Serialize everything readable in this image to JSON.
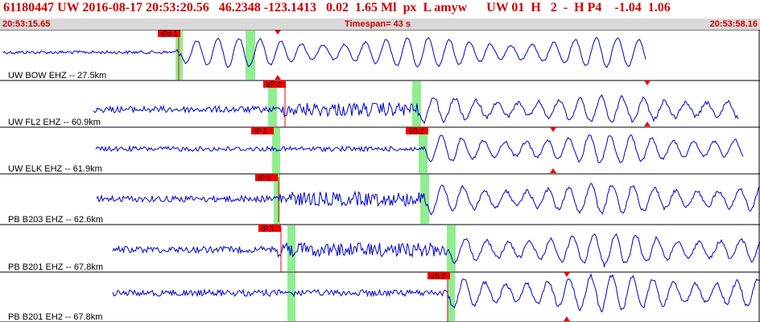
{
  "header": {
    "title": "61180447 UW 2016-08-17 20:53:20.56   46.2348 -123.1413   0.02  1.65 Ml  px  L amyw      UW 01  H   2  -  H P4    -1.04  1.06",
    "start_time": "20:53:15.65",
    "timespan": "Timespan=  43 s",
    "end_time": "20:53:58.16"
  },
  "colors": {
    "title": "#cc0000",
    "trace": "#0000cc",
    "pick_box": "#ee0000",
    "window": "#90ee90",
    "separator": "#000000"
  },
  "panels": [
    {
      "label": "UW BOW EHZ -- 27.5km",
      "picks": [
        {
          "text": "iPd 1"
        }
      ],
      "has_event_marker": true
    },
    {
      "label": "UW FL2 EHZ -- 60.9km",
      "picks": [
        {
          "text": "eP 2"
        }
      ],
      "has_event_marker": true
    },
    {
      "label": "UW ELK EHZ -- 61.9km",
      "picks": [
        {
          "text": "iP 1"
        },
        {
          "text": "eS 2"
        }
      ],
      "has_event_marker": true
    },
    {
      "label": "PB B203 EHZ -- 62.6km",
      "picks": [
        {
          "text": "iP 1"
        }
      ],
      "has_event_marker": false
    },
    {
      "label": "PB B201 EHZ -- 67.8km",
      "picks": [
        {
          "text": "iP 1"
        }
      ],
      "has_event_marker": false
    },
    {
      "label": "PB B201 EH2 -- 67.8km",
      "picks": [
        {
          "text": "eS 2"
        }
      ],
      "has_event_marker": true
    }
  ]
}
